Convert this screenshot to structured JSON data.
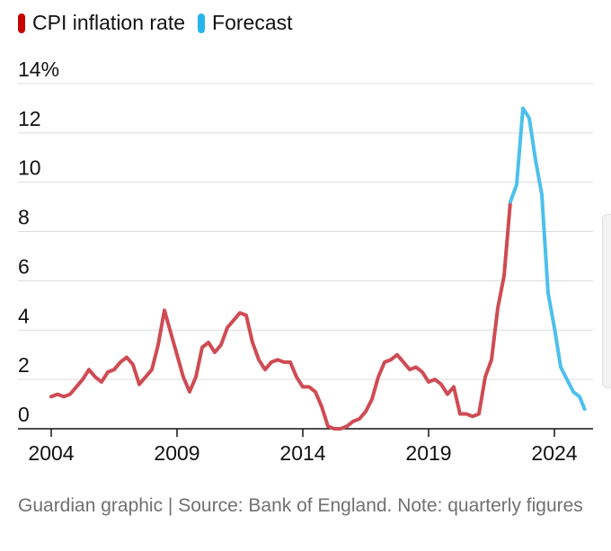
{
  "chart_data": {
    "type": "line",
    "legend": [
      {
        "label": "CPI inflation rate",
        "color": "#c70000"
      },
      {
        "label": "Forecast",
        "color": "#27b5ea"
      }
    ],
    "y_ticks": [
      "0",
      "2",
      "4",
      "6",
      "8",
      "10",
      "12",
      "14%"
    ],
    "x_ticks": [
      "2004",
      "2009",
      "2014",
      "2019",
      "2024"
    ],
    "ylim": [
      0,
      15.5
    ],
    "xlim": [
      2003.75,
      2025.2
    ],
    "grid": true,
    "legend_placement": "top-left",
    "series": [
      {
        "label": "CPI inflation rate",
        "color": "#cf4b53",
        "x": [
          2004.0,
          2004.25,
          2004.5,
          2004.75,
          2005.0,
          2005.25,
          2005.5,
          2005.75,
          2006.0,
          2006.25,
          2006.5,
          2006.75,
          2007.0,
          2007.25,
          2007.5,
          2007.75,
          2008.0,
          2008.25,
          2008.5,
          2008.75,
          2009.0,
          2009.25,
          2009.5,
          2009.75,
          2010.0,
          2010.25,
          2010.5,
          2010.75,
          2011.0,
          2011.25,
          2011.5,
          2011.75,
          2012.0,
          2012.25,
          2012.5,
          2012.75,
          2013.0,
          2013.25,
          2013.5,
          2013.75,
          2014.0,
          2014.25,
          2014.5,
          2014.75,
          2015.0,
          2015.25,
          2015.5,
          2015.75,
          2016.0,
          2016.25,
          2016.5,
          2016.75,
          2017.0,
          2017.25,
          2017.5,
          2017.75,
          2018.0,
          2018.25,
          2018.5,
          2018.75,
          2019.0,
          2019.25,
          2019.5,
          2019.75,
          2020.0,
          2020.25,
          2020.5,
          2020.75,
          2021.0,
          2021.25,
          2021.5,
          2021.75,
          2022.0,
          2022.25
        ],
        "values": [
          1.3,
          1.4,
          1.3,
          1.4,
          1.7,
          2.0,
          2.4,
          2.1,
          1.9,
          2.3,
          2.4,
          2.7,
          2.9,
          2.6,
          1.8,
          2.1,
          2.4,
          3.4,
          4.8,
          3.9,
          3.0,
          2.1,
          1.5,
          2.1,
          3.3,
          3.5,
          3.1,
          3.4,
          4.1,
          4.4,
          4.7,
          4.6,
          3.5,
          2.8,
          2.4,
          2.7,
          2.8,
          2.7,
          2.7,
          2.1,
          1.7,
          1.7,
          1.5,
          0.9,
          0.1,
          0.0,
          0.0,
          0.1,
          0.3,
          0.4,
          0.7,
          1.2,
          2.1,
          2.7,
          2.8,
          3.0,
          2.7,
          2.4,
          2.5,
          2.3,
          1.9,
          2.0,
          1.8,
          1.4,
          1.7,
          0.6,
          0.6,
          0.5,
          0.6,
          2.1,
          2.8,
          4.9,
          6.2,
          9.2
        ]
      },
      {
        "label": "Forecast",
        "color": "#4cc0ec",
        "x": [
          2022.25,
          2022.5,
          2022.75,
          2023.0,
          2023.25,
          2023.5,
          2023.75,
          2024.0,
          2024.25,
          2024.5,
          2024.75,
          2025.0,
          2025.2
        ],
        "values": [
          9.2,
          9.9,
          13.0,
          12.6,
          10.9,
          9.5,
          5.5,
          4.1,
          2.5,
          2.0,
          1.5,
          1.3,
          0.8
        ]
      }
    ]
  },
  "source_note": "Guardian graphic | Source: Bank of England. Note: quarterly figures"
}
